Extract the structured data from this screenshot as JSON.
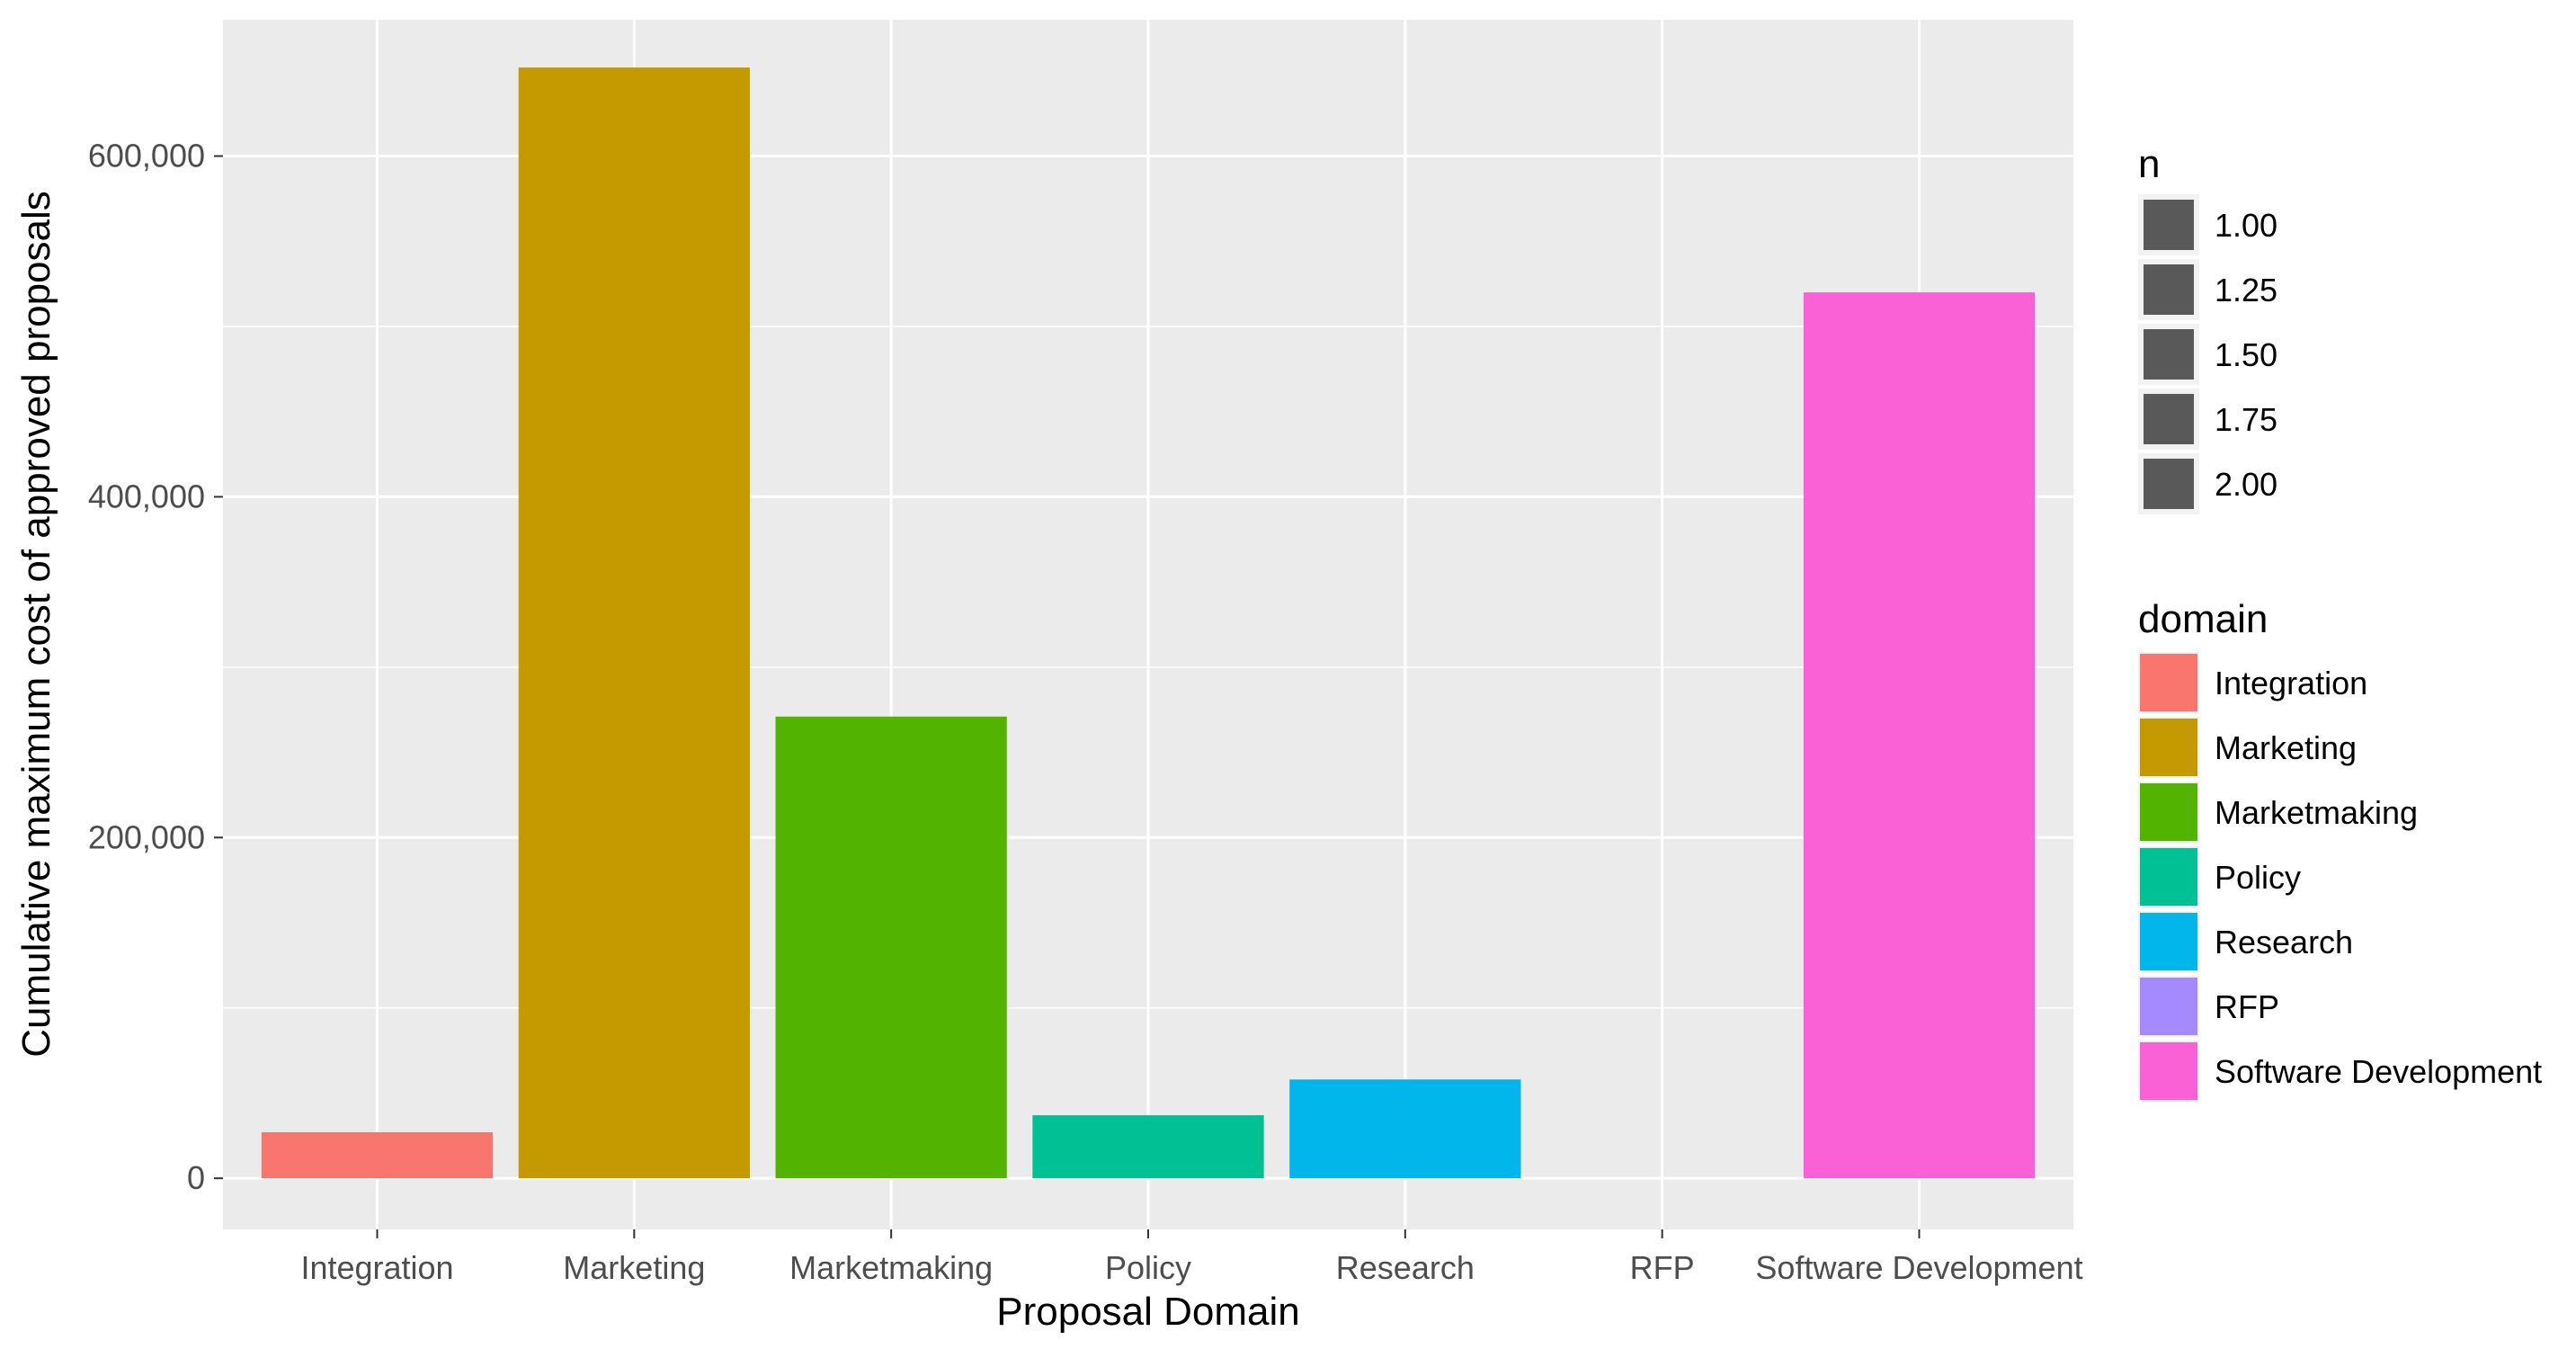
{
  "chart_data": {
    "type": "bar",
    "title": "",
    "xlabel": "Proposal Domain",
    "ylabel": "Cumulative maximum cost of approved proposals",
    "categories": [
      "Integration",
      "Marketing",
      "Marketmaking",
      "Policy",
      "Research",
      "RFP",
      "Software Development"
    ],
    "values": [
      27000,
      652000,
      271000,
      37000,
      58000,
      0,
      520000
    ],
    "ylim": [
      -30000,
      680000
    ],
    "yticks": [
      0,
      200000,
      400000,
      600000
    ],
    "ytick_labels": [
      "0",
      "200,000",
      "400,000",
      "600,000"
    ],
    "grid": true,
    "panel_background": "#ebebeb",
    "colors": [
      "#f8766d",
      "#c49a00",
      "#53b400",
      "#00c094",
      "#00b6eb",
      "#a58aff",
      "#fb61d7"
    ],
    "legend_position": "right",
    "legends": [
      {
        "title": "n",
        "entries": [
          "1.00",
          "1.25",
          "1.50",
          "1.75",
          "2.00"
        ],
        "key_color": "#595959"
      },
      {
        "title": "domain",
        "entries": [
          "Integration",
          "Marketing",
          "Marketmaking",
          "Policy",
          "Research",
          "RFP",
          "Software Development"
        ]
      }
    ]
  }
}
